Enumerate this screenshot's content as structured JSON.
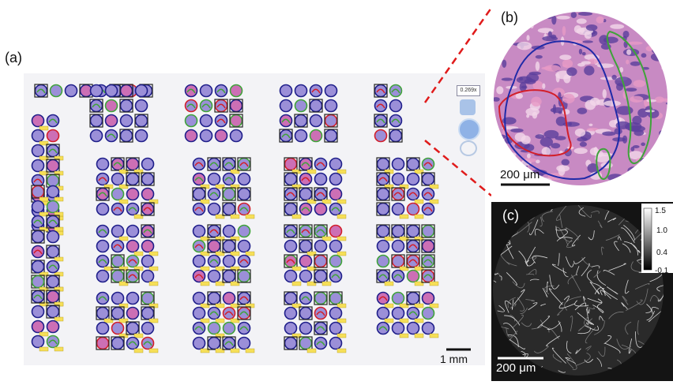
{
  "panels": {
    "a": {
      "label": "(a)",
      "scalebar": "1 mm"
    },
    "b": {
      "label": "(b)",
      "scalebar": "200 μm"
    },
    "c": {
      "label": "(c)",
      "scalebar": "200 μm",
      "colorbar": {
        "ticks": [
          "1.5",
          "1.0",
          "0.4",
          "-0.1"
        ]
      }
    }
  },
  "viewer": {
    "zoom_readout": "0.269x"
  },
  "colors": {
    "core_fill": "#9b8fd8",
    "core_edge": "#1f1f8a",
    "tag_fill": "#f6df58",
    "tissue_pink": "#cc6fb5",
    "annotation_red": "#d21f2a",
    "annotation_blue": "#1f2aa8",
    "annotation_green": "#3fa33a",
    "zoom_line": "#e01b1b"
  }
}
